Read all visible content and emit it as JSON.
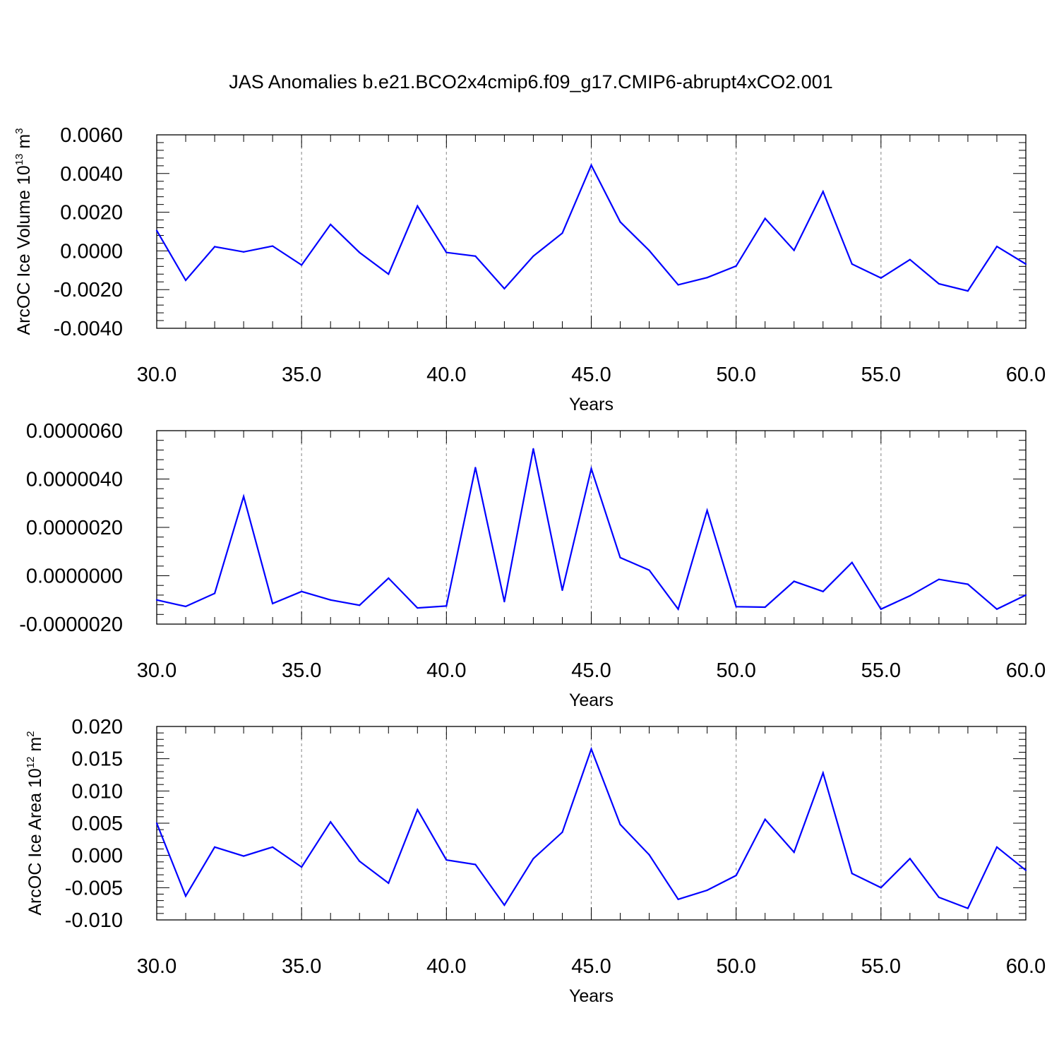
{
  "chart_data": [
    {
      "type": "line",
      "title": "JAS Anomalies b.e21.BCO2x4cmip6.f09_g17.CMIP6-abrupt4xCO2.001",
      "xlabel": "Years",
      "ylabel": "ArcOC Ice Volume 10",
      "ylabel_sup": "13",
      "ylabel_unit": " m",
      "ylabel_unit_sup": "3",
      "xlim": [
        30,
        60
      ],
      "ylim": [
        -0.004,
        0.006
      ],
      "xticks": [
        30,
        35,
        40,
        45,
        50,
        55,
        60
      ],
      "xtick_labels": [
        "30.0",
        "35.0",
        "40.0",
        "45.0",
        "50.0",
        "55.0",
        "60.0"
      ],
      "yticks": [
        -0.004,
        -0.002,
        0.0,
        0.002,
        0.004,
        0.006
      ],
      "ytick_labels": [
        "-0.0040",
        "-0.0020",
        "0.0000",
        "0.0020",
        "0.0040",
        "0.0060"
      ],
      "grid": "vertical dashed at major x ticks",
      "color": "#0000ff",
      "x": [
        30,
        31,
        32,
        33,
        34,
        35,
        36,
        37,
        38,
        39,
        40,
        41,
        42,
        43,
        44,
        45,
        46,
        47,
        48,
        49,
        50,
        51,
        52,
        53,
        54,
        55,
        56,
        57,
        58,
        59,
        60
      ],
      "values": [
        0.00105,
        -0.00152,
        0.00022,
        -5e-05,
        0.00025,
        -0.00073,
        0.00137,
        -8e-05,
        -0.0012,
        0.00232,
        -8e-05,
        -0.00027,
        -0.00195,
        -0.00027,
        0.00092,
        0.00443,
        0.0015,
        2e-05,
        -0.00175,
        -0.00138,
        -0.00078,
        0.00168,
        3e-05,
        0.00307,
        -0.00068,
        -0.0014,
        -0.00045,
        -0.0017,
        -0.00207,
        0.00023,
        -0.00068
      ]
    },
    {
      "type": "line",
      "xlabel": "Years",
      "xlim": [
        30,
        60
      ],
      "ylim": [
        -2e-06,
        6e-06
      ],
      "xticks": [
        30,
        35,
        40,
        45,
        50,
        55,
        60
      ],
      "xtick_labels": [
        "30.0",
        "35.0",
        "40.0",
        "45.0",
        "50.0",
        "55.0",
        "60.0"
      ],
      "yticks": [
        -2e-06,
        0.0,
        2e-06,
        4e-06,
        6e-06
      ],
      "ytick_labels": [
        "-0.0000020",
        "0.0000000",
        "0.0000020",
        "0.0000040",
        "0.0000060"
      ],
      "grid": "vertical dashed at major x ticks",
      "color": "#0000ff",
      "x": [
        30,
        31,
        32,
        33,
        34,
        35,
        36,
        37,
        38,
        39,
        40,
        41,
        42,
        43,
        44,
        45,
        46,
        47,
        48,
        49,
        50,
        51,
        52,
        53,
        54,
        55,
        56,
        57,
        58,
        59,
        60
      ],
      "values": [
        -1e-06,
        -1.27e-06,
        -7.3e-07,
        3.28e-06,
        -1.15e-06,
        -6.5e-07,
        -1e-06,
        -1.22e-06,
        -1e-07,
        -1.33e-06,
        -1.25e-06,
        4.47e-06,
        -1.07e-06,
        5.25e-06,
        -6e-07,
        4.43e-06,
        7.5e-07,
        2.3e-07,
        -1.38e-06,
        2.7e-06,
        -1.28e-06,
        -1.3e-06,
        -2.3e-07,
        -6.5e-07,
        5.5e-07,
        -1.38e-06,
        -8.3e-07,
        -1.5e-07,
        -3.5e-07,
        -1.38e-06,
        -8e-07
      ]
    },
    {
      "type": "line",
      "xlabel": "Years",
      "ylabel": "ArcOC Ice Area 10",
      "ylabel_sup": "12",
      "ylabel_unit": " m",
      "ylabel_unit_sup": "2",
      "xlim": [
        30,
        60
      ],
      "ylim": [
        -0.01,
        0.02
      ],
      "xticks": [
        30,
        35,
        40,
        45,
        50,
        55,
        60
      ],
      "xtick_labels": [
        "30.0",
        "35.0",
        "40.0",
        "45.0",
        "50.0",
        "55.0",
        "60.0"
      ],
      "yticks": [
        -0.01,
        -0.005,
        0.0,
        0.005,
        0.01,
        0.015,
        0.02
      ],
      "ytick_labels": [
        "-0.010",
        "-0.005",
        "0.000",
        "0.005",
        "0.010",
        "0.015",
        "0.020"
      ],
      "grid": "vertical dashed at major x ticks",
      "color": "#0000ff",
      "x": [
        30,
        31,
        32,
        33,
        34,
        35,
        36,
        37,
        38,
        39,
        40,
        41,
        42,
        43,
        44,
        45,
        46,
        47,
        48,
        49,
        50,
        51,
        52,
        53,
        54,
        55,
        56,
        57,
        58,
        59,
        60
      ],
      "values": [
        0.005,
        -0.0063,
        0.0013,
        -0.0001,
        0.0013,
        -0.0018,
        0.0052,
        -0.0009,
        -0.0043,
        0.0071,
        -0.0007,
        -0.0014,
        -0.0077,
        -0.0005,
        0.0036,
        0.0165,
        0.0048,
        0.0001,
        -0.0068,
        -0.0054,
        -0.0031,
        0.0056,
        0.0005,
        0.0128,
        -0.0028,
        -0.005,
        -0.0005,
        -0.0065,
        -0.0082,
        0.0013,
        -0.0023
      ]
    }
  ]
}
